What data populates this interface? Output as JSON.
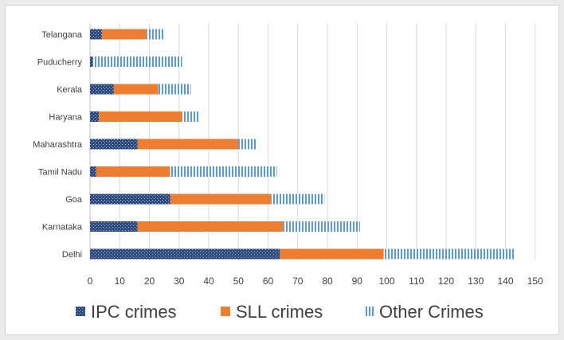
{
  "chart_data": {
    "type": "bar",
    "orientation": "horizontal",
    "stacked": true,
    "categories": [
      "Telangana",
      "Puducherry",
      "Kerala",
      "Haryana",
      "Maharashtra",
      "Tamil Nadu",
      "Goa",
      "Karnataka",
      "Delhi"
    ],
    "series": [
      {
        "name": "IPC crimes",
        "values": [
          4,
          1,
          8,
          3,
          16,
          2,
          27,
          16,
          64
        ]
      },
      {
        "name": "SLL crimes",
        "values": [
          15,
          0,
          15,
          28,
          34,
          25,
          34,
          49,
          35
        ]
      },
      {
        "name": "Other Crimes",
        "values": [
          6,
          30,
          11,
          6,
          6,
          36,
          18,
          26,
          44
        ]
      }
    ],
    "xlim": [
      0,
      150
    ],
    "xticks": [
      "0",
      "10",
      "20",
      "30",
      "40",
      "50",
      "60",
      "70",
      "80",
      "90",
      "100",
      "110",
      "120",
      "130",
      "140",
      "150"
    ],
    "grid": true,
    "legend_position": "bottom",
    "colors": {
      "IPC crimes": "#2e4a7d",
      "SLL crimes": "#ed7d31",
      "Other Crimes": "#5b9bd5",
      "grid": "#d9d9d9",
      "axis": "#bfbfbf"
    }
  }
}
